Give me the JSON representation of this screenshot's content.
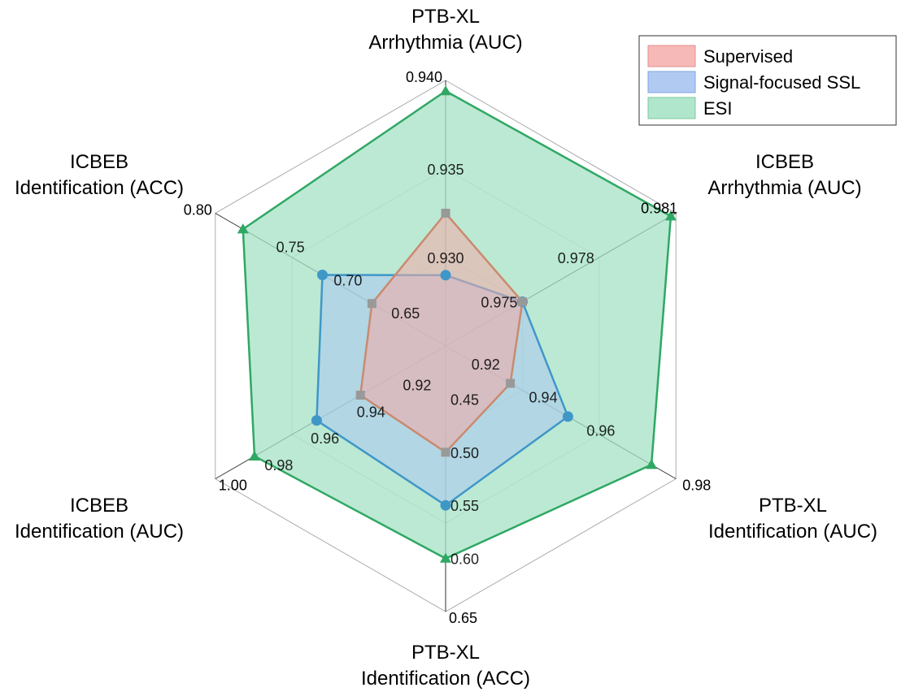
{
  "chart_data": {
    "type": "radar",
    "axes": [
      {
        "label": [
          "PTB-XL",
          "Arrhythmia (AUC)"
        ],
        "min": 0.925,
        "max": 0.94,
        "ticks": [
          "0.930",
          "0.935",
          "0.940"
        ]
      },
      {
        "label": [
          "ICBEB",
          "Arrhythmia (AUC)"
        ],
        "min": 0.972,
        "max": 0.981,
        "ticks": [
          "0.975",
          "0.978",
          "0.981"
        ]
      },
      {
        "label": [
          "PTB-XL",
          "Identification (AUC)"
        ],
        "min": 0.9,
        "max": 0.98,
        "ticks": [
          "0.92",
          "0.94",
          "0.96",
          "0.98"
        ]
      },
      {
        "label": [
          "PTB-XL",
          "Identification (ACC)"
        ],
        "min": 0.4,
        "max": 0.65,
        "ticks": [
          "0.45",
          "0.50",
          "0.55",
          "0.60",
          "0.65"
        ]
      },
      {
        "label": [
          "ICBEB",
          "Identification (AUC)"
        ],
        "min": 0.9,
        "max": 1.0,
        "ticks": [
          "0.92",
          "0.94",
          "0.96",
          "0.98",
          "1.00"
        ]
      },
      {
        "label": [
          "ICBEB",
          "Identification (ACC)"
        ],
        "min": 0.6,
        "max": 0.8,
        "ticks": [
          "0.65",
          "0.70",
          "0.75",
          "0.80"
        ]
      }
    ],
    "series": [
      {
        "name": "Supervised",
        "values": [
          0.9325,
          0.975,
          0.9225,
          0.5,
          0.937,
          0.664
        ],
        "fill": "#f4a9a8",
        "stroke": "#c98a6f",
        "marker": "square",
        "marker_color": "#999999"
      },
      {
        "name": "Signal-focused SSL",
        "values": [
          0.929,
          0.975,
          0.9425,
          0.55,
          0.956,
          0.707
        ],
        "fill": "#a9c6ee",
        "stroke": "#3f97c8",
        "marker": "circle",
        "marker_color": "#3f97c8"
      },
      {
        "name": "ESI",
        "values": [
          0.9394,
          0.9808,
          0.9715,
          0.6,
          0.983,
          0.776
        ],
        "fill": "#a6e2c5",
        "stroke": "#2fa864",
        "marker": "triangle",
        "marker_color": "#2fa864"
      }
    ],
    "legend_position": "top-right",
    "grid": true
  }
}
